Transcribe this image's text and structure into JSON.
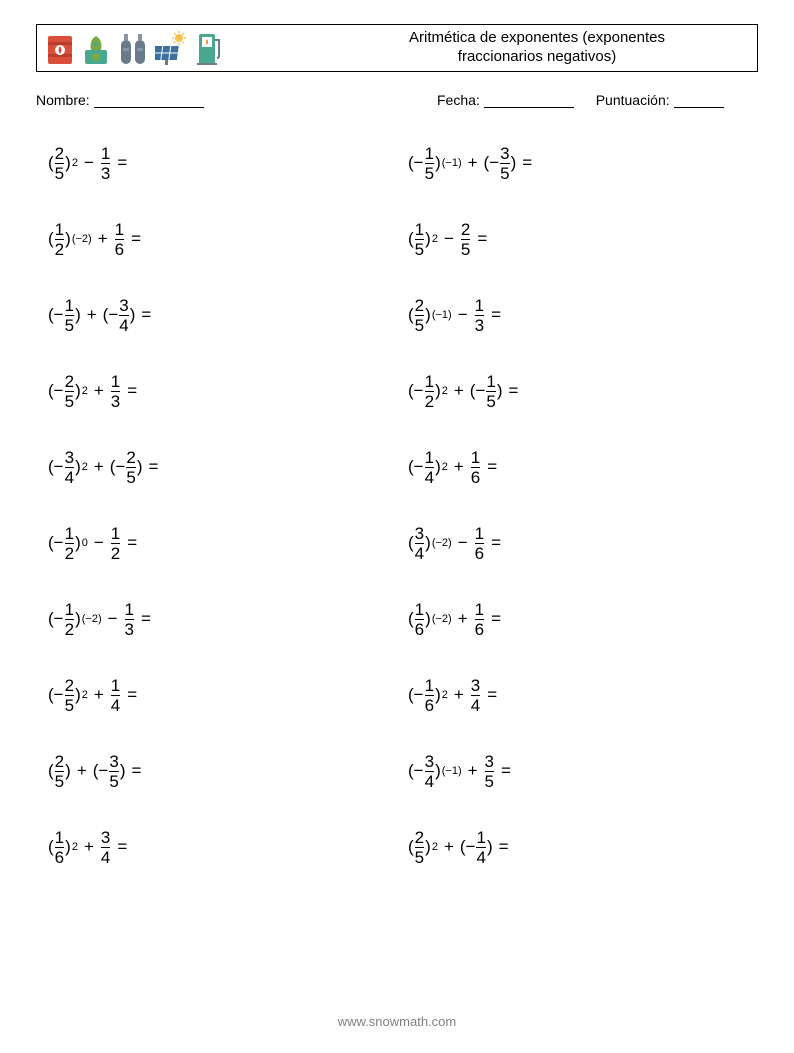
{
  "header": {
    "title": "Aritmética de exponentes (exponentes\nfraccionarios negativos)"
  },
  "info": {
    "name_label": "Nombre:",
    "date_label": "Fecha:",
    "score_label": "Puntuación:",
    "name_blank_width": 110,
    "date_blank_width": 90,
    "score_blank_width": 50
  },
  "problems": [
    {
      "a_sign": "",
      "a_num": "2",
      "a_den": "5",
      "exp": "2",
      "op": "−",
      "b_sign": "",
      "b_num": "1",
      "b_den": "3"
    },
    {
      "a_sign": "−",
      "a_num": "1",
      "a_den": "5",
      "exp": "(−1)",
      "op": "+",
      "b_sign": "−",
      "b_num": "3",
      "b_den": "5"
    },
    {
      "a_sign": "",
      "a_num": "1",
      "a_den": "2",
      "exp": "(−2)",
      "op": "+",
      "b_sign": "",
      "b_num": "1",
      "b_den": "6"
    },
    {
      "a_sign": "",
      "a_num": "1",
      "a_den": "5",
      "exp": "2",
      "op": "−",
      "b_sign": "",
      "b_num": "2",
      "b_den": "5"
    },
    {
      "a_sign": "−",
      "a_num": "1",
      "a_den": "5",
      "exp": "",
      "op": "+",
      "b_sign": "−",
      "b_num": "3",
      "b_den": "4"
    },
    {
      "a_sign": "",
      "a_num": "2",
      "a_den": "5",
      "exp": "(−1)",
      "op": "−",
      "b_sign": "",
      "b_num": "1",
      "b_den": "3"
    },
    {
      "a_sign": "−",
      "a_num": "2",
      "a_den": "5",
      "exp": "2",
      "op": "+",
      "b_sign": "",
      "b_num": "1",
      "b_den": "3"
    },
    {
      "a_sign": "−",
      "a_num": "1",
      "a_den": "2",
      "exp": "2",
      "op": "+",
      "b_sign": "−",
      "b_num": "1",
      "b_den": "5"
    },
    {
      "a_sign": "−",
      "a_num": "3",
      "a_den": "4",
      "exp": "2",
      "op": "+",
      "b_sign": "−",
      "b_num": "2",
      "b_den": "5"
    },
    {
      "a_sign": "−",
      "a_num": "1",
      "a_den": "4",
      "exp": "2",
      "op": "+",
      "b_sign": "",
      "b_num": "1",
      "b_den": "6"
    },
    {
      "a_sign": "−",
      "a_num": "1",
      "a_den": "2",
      "exp": "0",
      "op": "−",
      "b_sign": "",
      "b_num": "1",
      "b_den": "2"
    },
    {
      "a_sign": "",
      "a_num": "3",
      "a_den": "4",
      "exp": "(−2)",
      "op": "−",
      "b_sign": "",
      "b_num": "1",
      "b_den": "6"
    },
    {
      "a_sign": "−",
      "a_num": "1",
      "a_den": "2",
      "exp": "(−2)",
      "op": "−",
      "b_sign": "",
      "b_num": "1",
      "b_den": "3"
    },
    {
      "a_sign": "",
      "a_num": "1",
      "a_den": "6",
      "exp": "(−2)",
      "op": "+",
      "b_sign": "",
      "b_num": "1",
      "b_den": "6"
    },
    {
      "a_sign": "−",
      "a_num": "2",
      "a_den": "5",
      "exp": "2",
      "op": "+",
      "b_sign": "",
      "b_num": "1",
      "b_den": "4"
    },
    {
      "a_sign": "−",
      "a_num": "1",
      "a_den": "6",
      "exp": "2",
      "op": "+",
      "b_sign": "",
      "b_num": "3",
      "b_den": "4"
    },
    {
      "a_sign": "",
      "a_num": "2",
      "a_den": "5",
      "exp": "",
      "op": "+",
      "b_sign": "−",
      "b_num": "3",
      "b_den": "5"
    },
    {
      "a_sign": "−",
      "a_num": "3",
      "a_den": "4",
      "exp": "(−1)",
      "op": "+",
      "b_sign": "",
      "b_num": "3",
      "b_den": "5"
    },
    {
      "a_sign": "",
      "a_num": "1",
      "a_den": "6",
      "exp": "2",
      "op": "+",
      "b_sign": "",
      "b_num": "3",
      "b_den": "4"
    },
    {
      "a_sign": "",
      "a_num": "2",
      "a_den": "5",
      "exp": "2",
      "op": "+",
      "b_sign": "−",
      "b_num": "1",
      "b_den": "4"
    }
  ],
  "footer": "www.snowmath.com",
  "icon_colors": {
    "red": "#d94f3a",
    "teal": "#4aa78f",
    "green": "#7aa844",
    "gray": "#6b7a8a",
    "orange": "#e88b2e",
    "blue": "#3b6fa0",
    "yellow": "#f2c24b"
  }
}
